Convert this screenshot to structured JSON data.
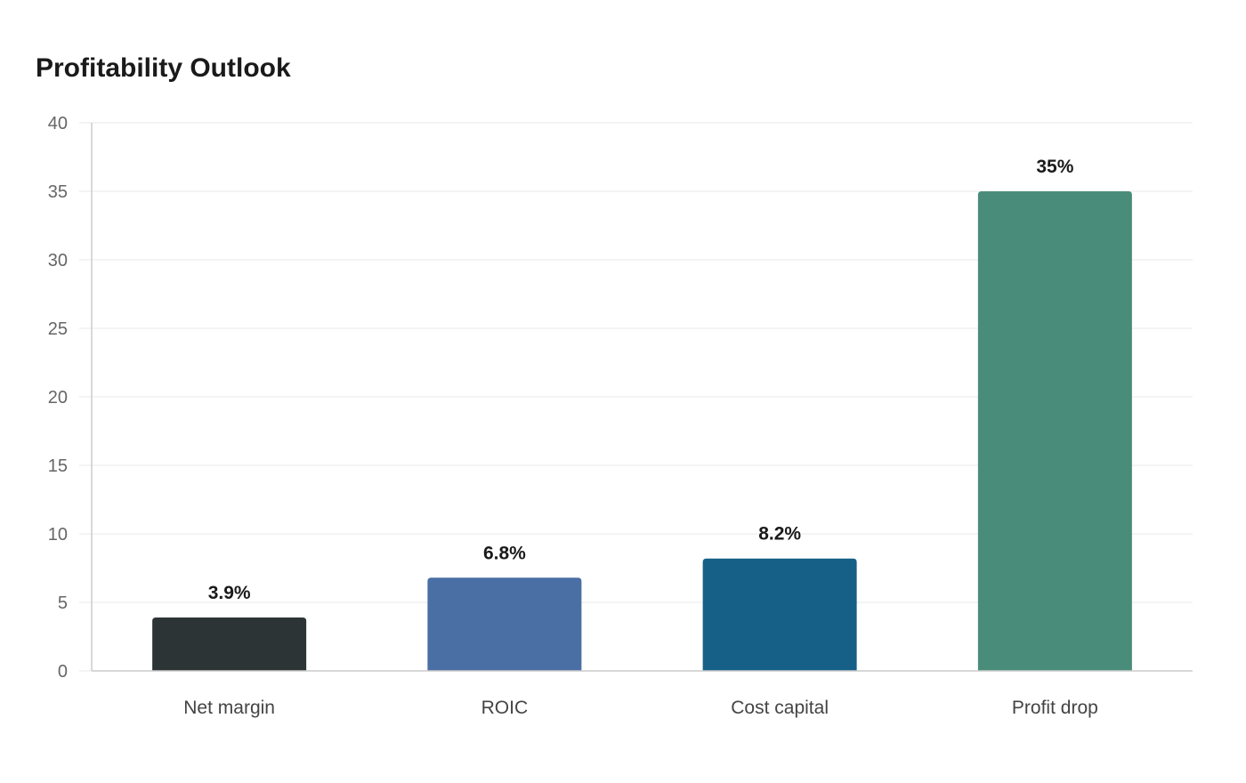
{
  "chart_data": {
    "type": "bar",
    "title": "Profitability Outlook",
    "categories": [
      "Net margin",
      "ROIC",
      "Cost capital",
      "Profit drop"
    ],
    "values": [
      3.9,
      6.8,
      8.2,
      35
    ],
    "data_labels": [
      "3.9%",
      "6.8%",
      "8.2%",
      "35%"
    ],
    "colors": [
      "#2d3436",
      "#4a6fa5",
      "#166088",
      "#4a8c7a"
    ],
    "xlabel": "",
    "ylabel": "",
    "ylim": [
      0,
      40
    ],
    "yticks": [
      0,
      5,
      10,
      15,
      20,
      25,
      30,
      35,
      40
    ],
    "grid": true,
    "legend": "none"
  }
}
